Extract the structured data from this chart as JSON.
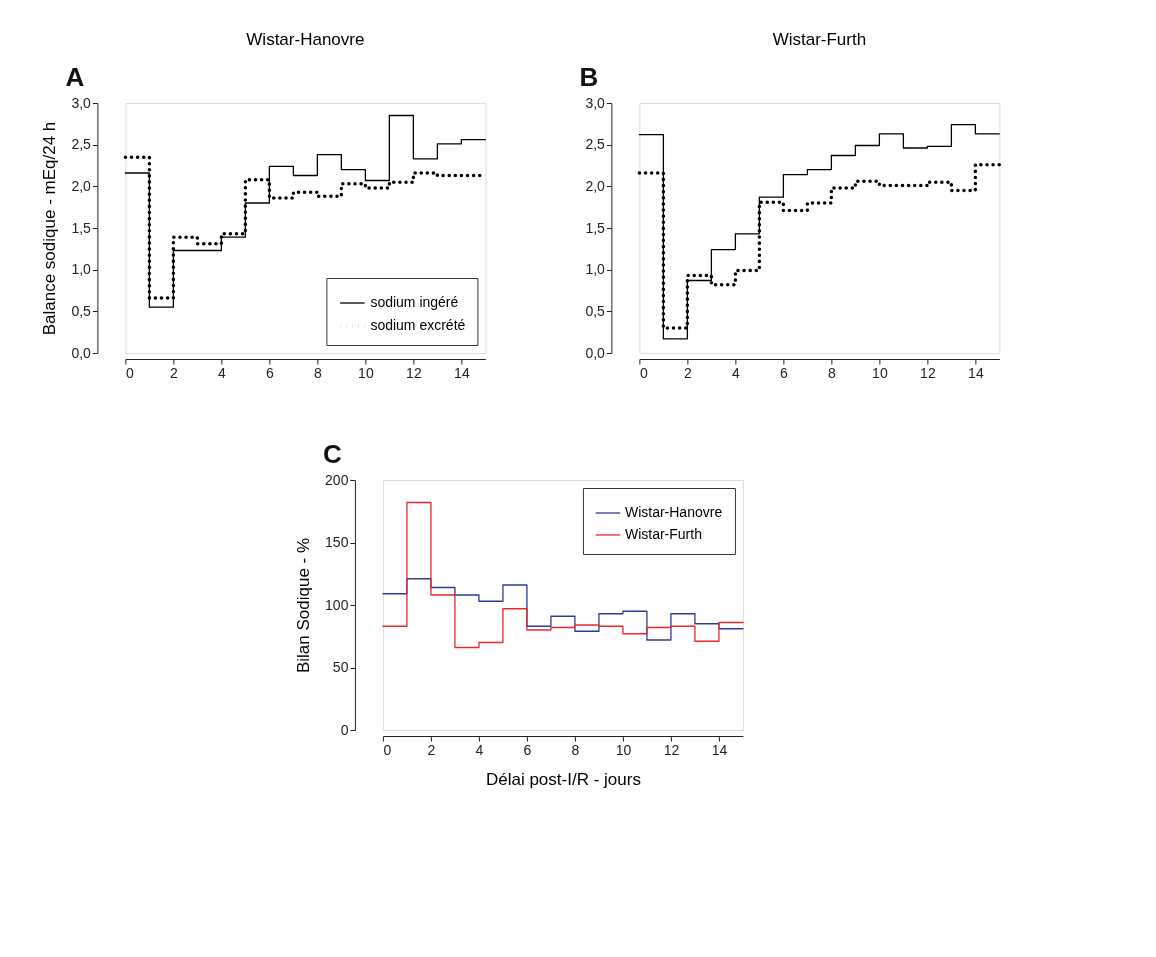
{
  "chart_data": [
    {
      "type": "step",
      "title": "Wistar-Hanovre",
      "annotations": [
        "A"
      ],
      "ylabel": "Balance sodique - mEq/24 h",
      "x": [
        0,
        1,
        2,
        3,
        4,
        5,
        6,
        7,
        8,
        9,
        10,
        11,
        12,
        13,
        14,
        15
      ],
      "xlim": [
        0,
        15
      ],
      "xticks": [
        0,
        2,
        4,
        6,
        8,
        10,
        12,
        14
      ],
      "ylim": [
        0,
        3
      ],
      "yticks": [
        {
          "value": 0,
          "label": "0,0"
        },
        {
          "value": 0.5,
          "label": "0,5"
        },
        {
          "value": 1,
          "label": "1,0"
        },
        {
          "value": 1.5,
          "label": "1,5"
        },
        {
          "value": 2,
          "label": "2,0"
        },
        {
          "value": 2.5,
          "label": "2,5"
        },
        {
          "value": 3,
          "label": "3,0"
        }
      ],
      "legend": "bottom right",
      "series": [
        {
          "name": "sodium ingéré",
          "color": "#000000",
          "line_style": "solid",
          "values": [
            2.16,
            0.55,
            1.23,
            1.23,
            1.39,
            1.8,
            2.24,
            2.13,
            2.38,
            2.2,
            2.07,
            2.85,
            2.33,
            2.51,
            2.56,
            2.56
          ]
        },
        {
          "name": "sodium excrété",
          "color": "#000000",
          "line_style": "dotted",
          "values": [
            2.35,
            0.66,
            1.39,
            1.31,
            1.43,
            2.08,
            1.86,
            1.93,
            1.88,
            2.03,
            1.98,
            2.05,
            2.16,
            2.13,
            2.13,
            2.13
          ]
        }
      ]
    },
    {
      "type": "step",
      "title": "Wistar-Furth",
      "annotations": [
        "B"
      ],
      "x": [
        0,
        1,
        2,
        3,
        4,
        5,
        6,
        7,
        8,
        9,
        10,
        11,
        12,
        13,
        14,
        15
      ],
      "xlim": [
        0,
        15
      ],
      "xticks": [
        0,
        2,
        4,
        6,
        8,
        10,
        12,
        14
      ],
      "ylim": [
        0,
        3
      ],
      "yticks": [
        {
          "value": 0,
          "label": "0,0"
        },
        {
          "value": 0.5,
          "label": "0,5"
        },
        {
          "value": 1,
          "label": "1,0"
        },
        {
          "value": 1.5,
          "label": "1,5"
        },
        {
          "value": 2,
          "label": "2,0"
        },
        {
          "value": 2.5,
          "label": "2,5"
        },
        {
          "value": 3,
          "label": "3,0"
        }
      ],
      "series": [
        {
          "color": "#000000",
          "line_style": "solid",
          "values": [
            2.62,
            0.17,
            0.87,
            1.24,
            1.43,
            1.87,
            2.14,
            2.2,
            2.37,
            2.49,
            2.63,
            2.46,
            2.48,
            2.74,
            2.63,
            2.63
          ]
        },
        {
          "color": "#000000",
          "line_style": "dotted",
          "values": [
            2.16,
            0.3,
            0.93,
            0.82,
            0.99,
            1.81,
            1.71,
            1.8,
            1.98,
            2.06,
            2.01,
            2.01,
            2.05,
            1.95,
            2.26,
            2.26
          ]
        }
      ]
    },
    {
      "type": "step",
      "annotations": [
        "C"
      ],
      "xlabel": "Délai post-I/R - jours",
      "ylabel": "Bilan Sodique - %",
      "x": [
        0,
        1,
        2,
        3,
        4,
        5,
        6,
        7,
        8,
        9,
        10,
        11,
        12,
        13,
        14,
        15
      ],
      "xlim": [
        0,
        15
      ],
      "xticks": [
        0,
        2,
        4,
        6,
        8,
        10,
        12,
        14
      ],
      "ylim": [
        0,
        200
      ],
      "yticks": [
        0,
        50,
        100,
        150,
        200
      ],
      "legend": "top right",
      "series": [
        {
          "name": "Wistar-Hanovre",
          "color": "#2b3a9a",
          "line_style": "solid",
          "values": [
            109,
            121,
            114,
            108,
            103,
            116,
            83,
            91,
            79,
            93,
            95,
            72,
            93,
            85,
            81,
            81
          ]
        },
        {
          "name": "Wistar-Furth",
          "color": "#e8282b",
          "line_style": "solid",
          "values": [
            83,
            182,
            108,
            66,
            70,
            97,
            80,
            82,
            84,
            83,
            77,
            82,
            83,
            71,
            86,
            86
          ]
        }
      ]
    }
  ]
}
